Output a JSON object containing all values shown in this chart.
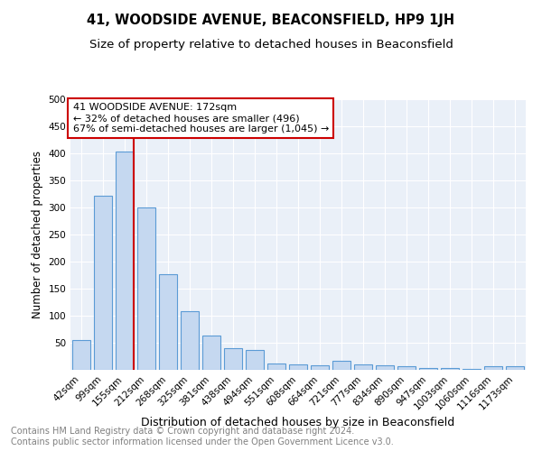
{
  "title": "41, WOODSIDE AVENUE, BEACONSFIELD, HP9 1JH",
  "subtitle": "Size of property relative to detached houses in Beaconsfield",
  "xlabel": "Distribution of detached houses by size in Beaconsfield",
  "ylabel": "Number of detached properties",
  "footer_line1": "Contains HM Land Registry data © Crown copyright and database right 2024.",
  "footer_line2": "Contains public sector information licensed under the Open Government Licence v3.0.",
  "categories": [
    "42sqm",
    "99sqm",
    "155sqm",
    "212sqm",
    "268sqm",
    "325sqm",
    "381sqm",
    "438sqm",
    "494sqm",
    "551sqm",
    "608sqm",
    "664sqm",
    "721sqm",
    "777sqm",
    "834sqm",
    "890sqm",
    "947sqm",
    "1003sqm",
    "1060sqm",
    "1116sqm",
    "1173sqm"
  ],
  "values": [
    55,
    322,
    403,
    300,
    176,
    109,
    64,
    40,
    36,
    12,
    10,
    8,
    16,
    10,
    8,
    6,
    4,
    3,
    1,
    6,
    6
  ],
  "bar_color": "#c5d8f0",
  "bar_edge_color": "#5b9bd5",
  "vline_color": "#cc0000",
  "annotation_text": "41 WOODSIDE AVENUE: 172sqm\n← 32% of detached houses are smaller (496)\n67% of semi-detached houses are larger (1,045) →",
  "annotation_box_color": "#ffffff",
  "annotation_box_edge_color": "#cc0000",
  "annotation_fontsize": 8.0,
  "ylim": [
    0,
    500
  ],
  "yticks": [
    0,
    50,
    100,
    150,
    200,
    250,
    300,
    350,
    400,
    450,
    500
  ],
  "bg_color": "#eaf0f8",
  "title_fontsize": 10.5,
  "subtitle_fontsize": 9.5,
  "xlabel_fontsize": 9.0,
  "ylabel_fontsize": 8.5,
  "tick_fontsize": 7.5,
  "footer_fontsize": 7.0
}
